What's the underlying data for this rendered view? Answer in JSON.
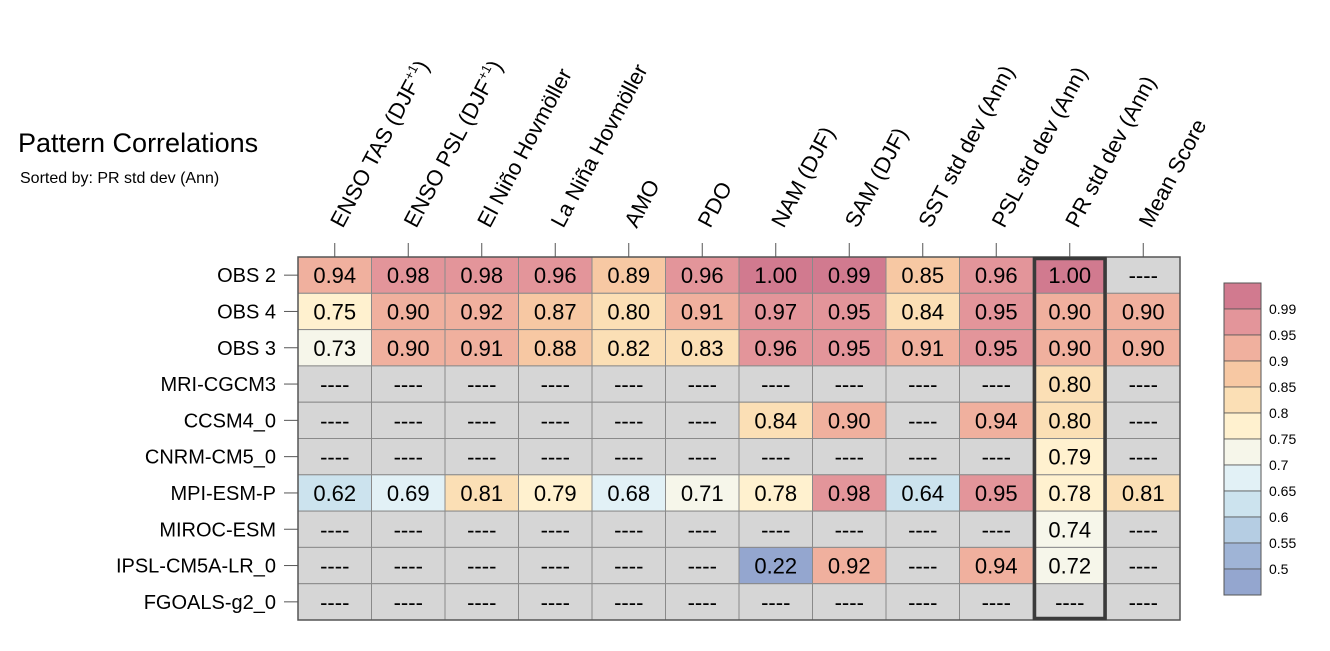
{
  "chart_data": {
    "type": "heatmap",
    "title": "Pattern Correlations",
    "subtitle": "Sorted by: PR std dev (Ann)",
    "columns": [
      {
        "base": "ENSO TAS (DJF",
        "sup": "+1",
        "close": ")"
      },
      {
        "base": "ENSO PSL (DJF",
        "sup": "+1",
        "close": ")"
      },
      {
        "base": "El Niño Hovmöller",
        "sup": "",
        "close": ""
      },
      {
        "base": "La Niña Hovmöller",
        "sup": "",
        "close": ""
      },
      {
        "base": "AMO",
        "sup": "",
        "close": ""
      },
      {
        "base": "PDO",
        "sup": "",
        "close": ""
      },
      {
        "base": "NAM (DJF)",
        "sup": "",
        "close": ""
      },
      {
        "base": "SAM (DJF)",
        "sup": "",
        "close": ""
      },
      {
        "base": "SST std dev (Ann)",
        "sup": "",
        "close": ""
      },
      {
        "base": "PSL std dev (Ann)",
        "sup": "",
        "close": ""
      },
      {
        "base": "PR std dev (Ann)",
        "sup": "",
        "close": ""
      },
      {
        "base": "Mean Score",
        "sup": "",
        "close": ""
      }
    ],
    "rows": [
      "OBS 2",
      "OBS 4",
      "OBS 3",
      "MRI-CGCM3",
      "CCSM4_0",
      "CNRM-CM5_0",
      "MPI-ESM-P",
      "MIROC-ESM",
      "IPSL-CM5A-LR_0",
      "FGOALS-g2_0"
    ],
    "values": [
      [
        0.94,
        0.98,
        0.98,
        0.96,
        0.89,
        0.96,
        1.0,
        0.99,
        0.85,
        0.96,
        1.0,
        null
      ],
      [
        0.75,
        0.9,
        0.92,
        0.87,
        0.8,
        0.91,
        0.97,
        0.95,
        0.84,
        0.95,
        0.9,
        0.9
      ],
      [
        0.73,
        0.9,
        0.91,
        0.88,
        0.82,
        0.83,
        0.96,
        0.95,
        0.91,
        0.95,
        0.9,
        0.9
      ],
      [
        null,
        null,
        null,
        null,
        null,
        null,
        null,
        null,
        null,
        null,
        0.8,
        null
      ],
      [
        null,
        null,
        null,
        null,
        null,
        null,
        0.84,
        0.9,
        null,
        0.94,
        0.8,
        null
      ],
      [
        null,
        null,
        null,
        null,
        null,
        null,
        null,
        null,
        null,
        null,
        0.79,
        null
      ],
      [
        0.62,
        0.69,
        0.81,
        0.79,
        0.68,
        0.71,
        0.78,
        0.98,
        0.64,
        0.95,
        0.78,
        0.81
      ],
      [
        null,
        null,
        null,
        null,
        null,
        null,
        null,
        null,
        null,
        null,
        0.74,
        null
      ],
      [
        null,
        null,
        null,
        null,
        null,
        null,
        0.22,
        0.92,
        null,
        0.94,
        0.72,
        null
      ],
      [
        null,
        null,
        null,
        null,
        null,
        null,
        null,
        null,
        null,
        null,
        null,
        null
      ]
    ],
    "missing_label": "----",
    "highlight_column": "PR std dev (Ann)",
    "colorbar": {
      "ticks": [
        "0.99",
        "0.95",
        "0.9",
        "0.85",
        "0.8",
        "0.75",
        "0.7",
        "0.65",
        "0.6",
        "0.55",
        "0.5"
      ],
      "colors": [
        "#d17a8f",
        "#e3959a",
        "#f0b09e",
        "#f7c8a3",
        "#fbdfb5",
        "#fff1cf",
        "#f6f6ea",
        "#e2f1f6",
        "#cce3ee",
        "#b5cde3",
        "#9fb4d6",
        "#94a6cf"
      ],
      "missing_color": "#d6d6d6"
    }
  }
}
